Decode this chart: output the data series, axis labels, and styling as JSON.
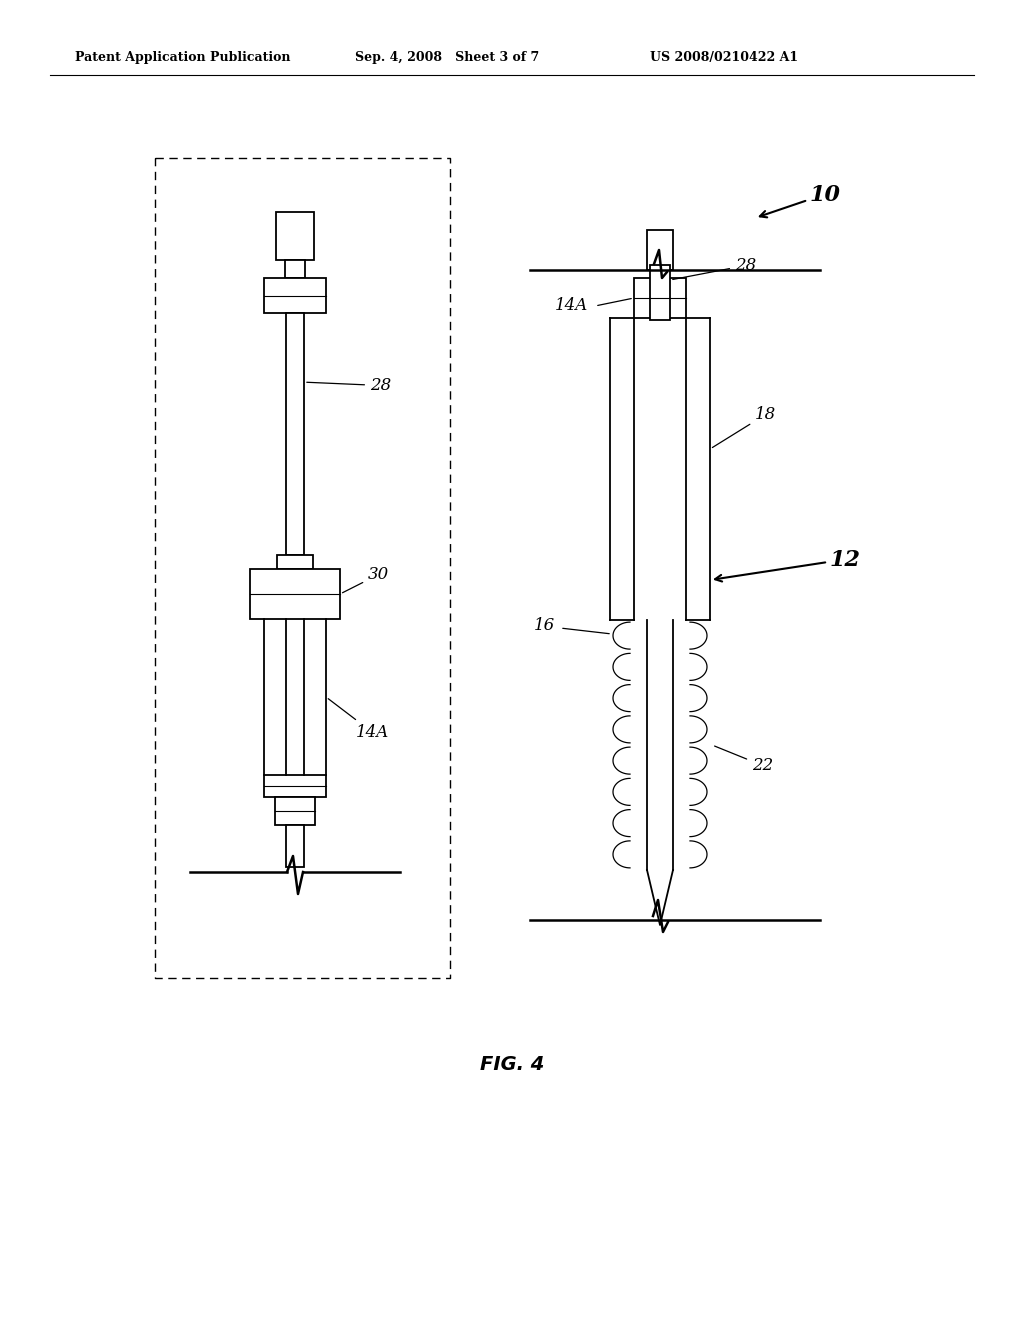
{
  "background_color": "#ffffff",
  "header_left": "Patent Application Publication",
  "header_mid": "Sep. 4, 2008   Sheet 3 of 7",
  "header_right": "US 2008/0210422 A1",
  "fig_label": "FIG. 4",
  "lw": 1.3,
  "lw_thick": 1.8
}
